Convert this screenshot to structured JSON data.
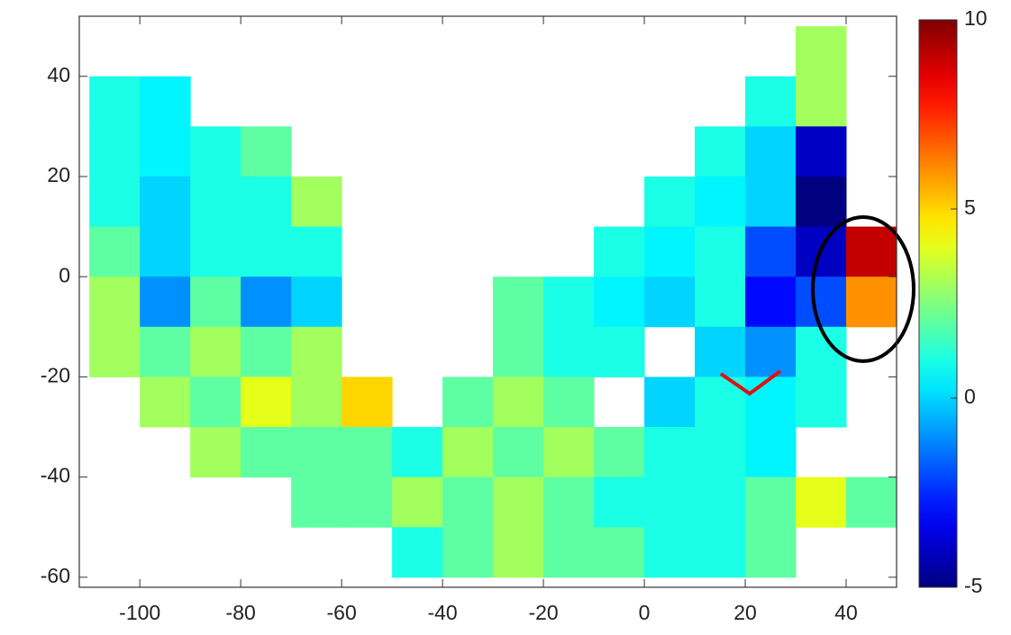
{
  "chart_data": {
    "type": "heatmap",
    "colormap": "jet",
    "x": [
      -105,
      -95,
      -85,
      -75,
      -65,
      -55,
      -45,
      -35,
      -25,
      -15,
      -5,
      5,
      15,
      25,
      35,
      45
    ],
    "y": [
      45,
      35,
      25,
      15,
      5,
      -5,
      -15,
      -25,
      -35,
      -45,
      -55
    ],
    "values": [
      [
        null,
        null,
        null,
        null,
        null,
        null,
        null,
        null,
        null,
        null,
        null,
        null,
        null,
        null,
        3,
        null
      ],
      [
        1,
        0.5,
        null,
        null,
        null,
        null,
        null,
        null,
        null,
        null,
        null,
        null,
        null,
        1,
        3,
        null
      ],
      [
        1,
        0.5,
        1,
        2,
        null,
        null,
        null,
        null,
        null,
        null,
        null,
        null,
        1,
        0,
        -4,
        null
      ],
      [
        1,
        0,
        1,
        1,
        3,
        null,
        null,
        null,
        null,
        null,
        null,
        1,
        0.5,
        0,
        -5,
        null
      ],
      [
        2,
        0,
        1,
        1,
        1,
        null,
        null,
        null,
        null,
        null,
        1,
        0.5,
        1,
        -2,
        -4,
        9
      ],
      [
        3,
        -1,
        2,
        -1,
        0,
        null,
        null,
        null,
        2,
        1,
        0.5,
        0,
        1,
        -3,
        -2,
        6
      ],
      [
        3,
        2,
        3,
        2,
        3,
        null,
        null,
        null,
        2,
        1,
        1,
        null,
        0,
        -1,
        1,
        null
      ],
      [
        null,
        3,
        2,
        4,
        3,
        5,
        null,
        2,
        3,
        2,
        null,
        0,
        1,
        0.5,
        1,
        null
      ],
      [
        null,
        null,
        3,
        2,
        2,
        2,
        1,
        3,
        2,
        3,
        2,
        1,
        1,
        0.5,
        null,
        null
      ],
      [
        null,
        null,
        null,
        null,
        2,
        2,
        3,
        2,
        3,
        2,
        1,
        1,
        1,
        2,
        4,
        2
      ],
      [
        null,
        null,
        null,
        null,
        null,
        null,
        1,
        2,
        3,
        2,
        2,
        1,
        1,
        2,
        null,
        null
      ]
    ],
    "xlim": [
      -112,
      50
    ],
    "ylim": [
      -62,
      52
    ],
    "xticks": [
      -100,
      -80,
      -60,
      -40,
      -20,
      0,
      20,
      40
    ],
    "yticks": [
      -60,
      -40,
      -20,
      0,
      20,
      40
    ],
    "zlim": [
      -5,
      10
    ],
    "zticks": [
      -5,
      0,
      5,
      10
    ]
  }
}
